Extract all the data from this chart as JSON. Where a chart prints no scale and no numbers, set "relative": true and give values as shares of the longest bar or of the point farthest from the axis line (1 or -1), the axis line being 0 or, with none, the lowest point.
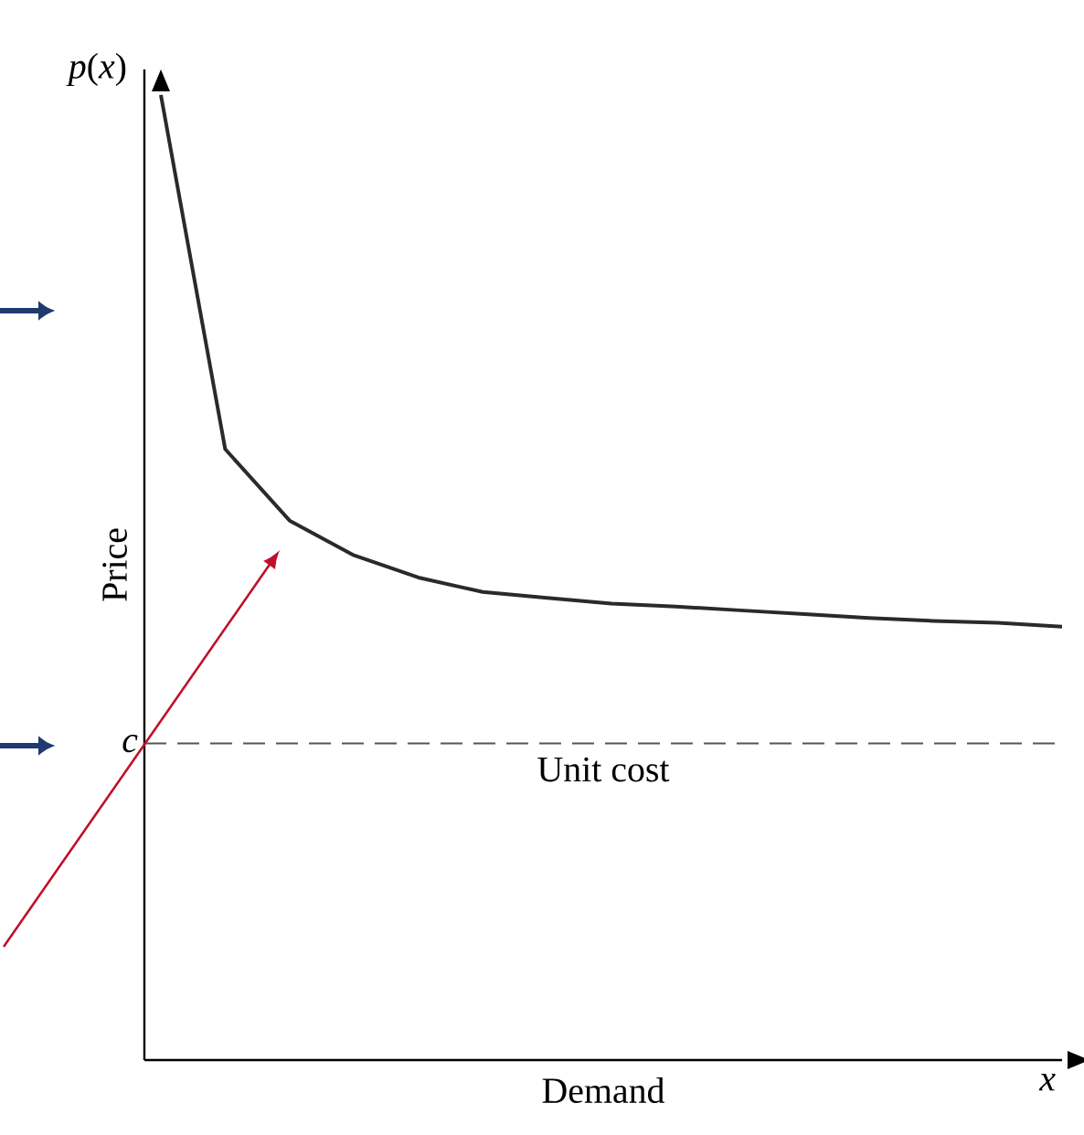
{
  "chart_data": {
    "type": "line",
    "relative": true,
    "xlabel": "Demand",
    "ylabel": "Price",
    "categories": [
      null,
      null,
      null,
      null,
      null,
      null,
      null,
      null,
      null,
      null,
      null,
      null,
      null,
      null,
      null
    ],
    "series": [
      {
        "color": "#2a2a2a",
        "values": [
          1.0,
          0.633,
          0.559,
          0.523,
          0.5,
          0.485,
          0.479,
          0.473,
          0.47,
          0.466,
          0.462,
          0.458,
          0.455,
          0.453,
          0.449
        ]
      }
    ],
    "ref_lines": [
      {
        "axis": "y",
        "value": 0.328,
        "label": "c",
        "color": "#555555",
        "line_style": "dashed"
      }
    ],
    "annotations": [
      "Unit cost",
      "*p*(*x*)",
      "*x*"
    ]
  }
}
